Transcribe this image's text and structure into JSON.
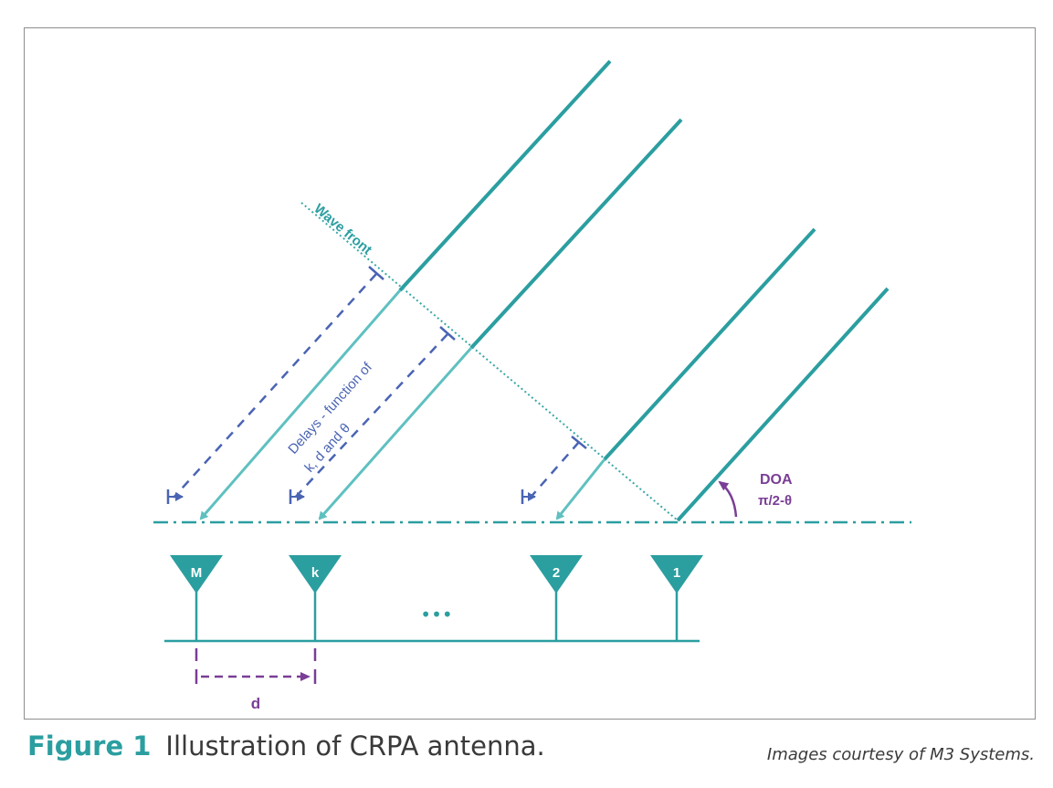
{
  "figure": {
    "label": "Figure 1",
    "title": "Illustration of CRPA antenna.",
    "credit": "Images courtesy of M3 Systems."
  },
  "diagram": {
    "wavefront_label": "Wave front",
    "delays_label_line1": "Delays - function of",
    "delays_label_line2": "k, d and θ",
    "doa_label": "DOA",
    "doa_formula": "π/2-θ",
    "spacing_label": "d",
    "ellipsis": "•••",
    "antennas": [
      {
        "id": "M"
      },
      {
        "id": "k"
      },
      {
        "id": "2"
      },
      {
        "id": "1"
      }
    ]
  },
  "colors": {
    "teal": "#2b9ea0",
    "light_teal": "#5fc0c0",
    "blue_dash": "#4a64b4",
    "purple": "#7a3e96",
    "dotted": "#3aa6a6"
  }
}
